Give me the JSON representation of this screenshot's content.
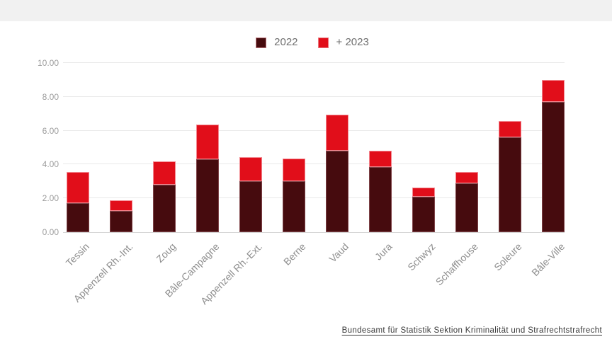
{
  "header": {
    "top_band_color": "#f1f1f1"
  },
  "chart_data": {
    "type": "bar",
    "stacked": true,
    "title": "",
    "xlabel": "",
    "ylabel": "",
    "grid": true,
    "legend_position": "top-center",
    "ylim": [
      0,
      10
    ],
    "yticks": [
      "0.00",
      "2.00",
      "4.00",
      "6.00",
      "8.00",
      "10.00"
    ],
    "ytick_values": [
      0,
      2,
      4,
      6,
      8,
      10
    ],
    "categories": [
      "Tessin",
      "Appenzell Rh.-Int.",
      "Zoug",
      "Bâle-Campagne",
      "Appenzell Rh.-Ext.",
      "Berne",
      "Vaud",
      "Jura",
      "Schwyz",
      "Schaffhouse",
      "Soleure",
      "Bâle-Ville"
    ],
    "series": [
      {
        "name": "2022",
        "color": "#460b0e",
        "values": [
          1.7,
          1.25,
          2.8,
          4.3,
          3.0,
          3.0,
          4.8,
          3.85,
          2.1,
          2.9,
          5.6,
          7.7
        ]
      },
      {
        "name": "+ 2023",
        "color": "#e10e1a",
        "values": [
          1.85,
          0.65,
          1.4,
          2.05,
          1.45,
          1.35,
          2.15,
          0.95,
          0.55,
          0.65,
          0.95,
          1.3
        ]
      }
    ]
  },
  "footer": {
    "source_label": "Bundesamt für Statistik Sektion Kriminalität und Strafrechtstrafrecht"
  }
}
